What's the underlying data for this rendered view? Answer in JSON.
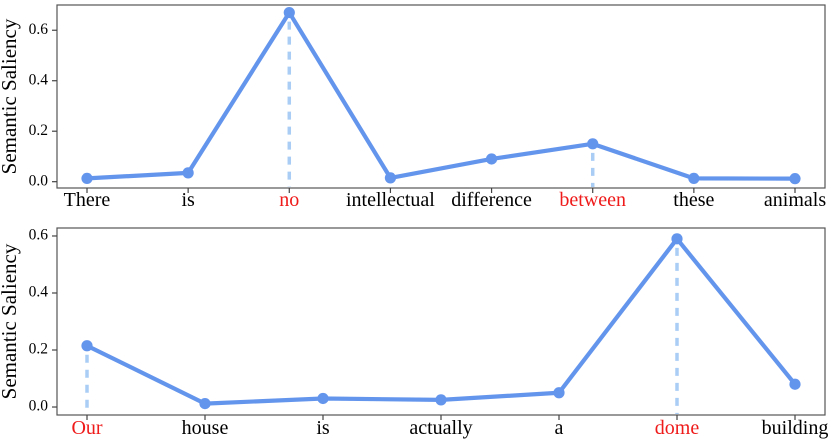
{
  "page": {
    "background": "#ffffff",
    "description": "Two stacked word-level semantic saliency line plots"
  },
  "colors": {
    "line": "#6495ED",
    "marker": "#6495ED",
    "guide_dash": "#A9CDF5",
    "highlight_text": "#EF1A1A",
    "text": "#000000",
    "spine": "#555555",
    "tick": "#444444"
  },
  "chart_data": [
    {
      "type": "line",
      "title": "",
      "xlabel": "",
      "ylabel": "Semantic Saliency",
      "categories": [
        "There",
        "is",
        "no",
        "intellectual",
        "difference",
        "between",
        "these",
        "animals"
      ],
      "values": [
        0.013,
        0.035,
        0.67,
        0.015,
        0.09,
        0.15,
        0.013,
        0.012
      ],
      "highlight_indices": [
        2,
        5
      ],
      "highlighted_words": [
        "no",
        "between"
      ],
      "yticks": [
        0.0,
        0.2,
        0.4,
        0.6
      ],
      "ytick_labels": [
        "0.0",
        "0.2",
        "0.4",
        "0.6"
      ],
      "ylim": [
        -0.025,
        0.7
      ],
      "grid": false,
      "legend": false,
      "guide_lines_at_highlights": true
    },
    {
      "type": "line",
      "title": "",
      "xlabel": "",
      "ylabel": "Semantic Saliency",
      "categories": [
        "Our",
        "house",
        "is",
        "actually",
        "a",
        "dome",
        "building"
      ],
      "values": [
        0.215,
        0.012,
        0.03,
        0.025,
        0.05,
        0.59,
        0.08
      ],
      "highlight_indices": [
        0,
        5
      ],
      "highlighted_words": [
        "Our",
        "dome"
      ],
      "yticks": [
        0.0,
        0.2,
        0.4,
        0.6
      ],
      "ytick_labels": [
        "0.0",
        "0.2",
        "0.4",
        "0.6"
      ],
      "ylim": [
        -0.028,
        0.628
      ],
      "grid": false,
      "legend": false,
      "guide_lines_at_highlights": true
    }
  ]
}
